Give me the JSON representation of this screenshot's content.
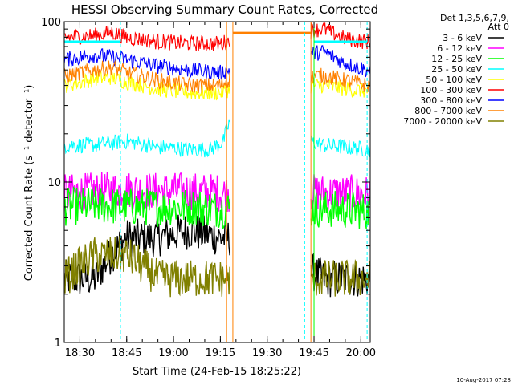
{
  "chart_data": {
    "type": "line",
    "title": "HESSI Observing Summary Count Rates, Corrected",
    "xlabel": "Start Time (24-Feb-15 18:25:22)",
    "ylabel": "Corrected Count Rate (s⁻¹ detector⁻¹)",
    "yscale": "log",
    "ylim": [
      1,
      100
    ],
    "xlim": [
      "18:25",
      "20:03"
    ],
    "x_ticks": [
      "18:30",
      "18:45",
      "19:00",
      "19:15",
      "19:30",
      "19:45",
      "20:00"
    ],
    "y_ticks": [
      "1",
      "10",
      "100"
    ],
    "legend_header": [
      "Det 1,3,5,6,7,9,",
      "Att 0"
    ],
    "legend_position": "right",
    "footer": "10-Aug-2017 07:28",
    "colors": {
      "axis": "#000000",
      "dashed_marker": "#00ffff"
    },
    "series": [
      {
        "name": "3 - 6 keV",
        "color": "#000000",
        "x": [
          "18:25",
          "18:35",
          "18:45",
          "18:55",
          "19:05",
          "19:15",
          "19:18",
          "19:48",
          "19:55",
          "20:02"
        ],
        "y": [
          2.5,
          2.5,
          4.5,
          4.5,
          5,
          4.5,
          4.5,
          2.5,
          2.5,
          2.5
        ]
      },
      {
        "name": "6 - 12 keV",
        "color": "#ff00ff",
        "x": [
          "18:25",
          "18:35",
          "18:45",
          "18:55",
          "19:05",
          "19:15",
          "19:18",
          "19:48",
          "19:55",
          "20:02"
        ],
        "y": [
          8.5,
          8.8,
          9,
          8.8,
          8.8,
          8.6,
          8.5,
          8.6,
          8.5,
          8.4
        ]
      },
      {
        "name": "12 - 25 keV",
        "color": "#00ff00",
        "x": [
          "18:25",
          "18:35",
          "18:45",
          "18:55",
          "19:05",
          "19:15",
          "19:18",
          "19:48",
          "19:55",
          "20:02"
        ],
        "y": [
          7,
          7.2,
          7,
          7,
          7,
          6.8,
          6.8,
          6.8,
          6.7,
          6.6
        ]
      },
      {
        "name": "25 - 50 keV",
        "color": "#00ffff",
        "x": [
          "18:25",
          "18:35",
          "18:45",
          "18:55",
          "19:05",
          "19:12",
          "19:16",
          "19:18",
          "19:48",
          "19:55",
          "20:02"
        ],
        "y": [
          17,
          17,
          18,
          16.5,
          16,
          16,
          18,
          24,
          17,
          16.5,
          16
        ]
      },
      {
        "name": "50 - 100 keV",
        "color": "#ffff00",
        "x": [
          "18:25",
          "18:35",
          "18:40",
          "18:45",
          "18:55",
          "19:05",
          "19:15",
          "19:18",
          "19:48",
          "19:55",
          "20:02"
        ],
        "y": [
          40,
          44,
          45,
          42,
          38,
          36,
          36,
          38,
          40,
          38,
          37
        ]
      },
      {
        "name": "100 - 300 keV",
        "color": "#ff0000",
        "x": [
          "18:25",
          "18:35",
          "18:40",
          "18:45",
          "18:55",
          "19:05",
          "19:15",
          "19:18",
          "19:48",
          "19:55",
          "20:02"
        ],
        "y": [
          80,
          82,
          86,
          80,
          75,
          73,
          73,
          76,
          90,
          78,
          75
        ]
      },
      {
        "name": "300 - 800 keV",
        "color": "#0000ff",
        "x": [
          "18:25",
          "18:35",
          "18:45",
          "18:55",
          "19:05",
          "19:15",
          "19:18",
          "19:48",
          "19:55",
          "20:02"
        ],
        "y": [
          58,
          62,
          58,
          53,
          50,
          48,
          50,
          65,
          55,
          50
        ]
      },
      {
        "name": "800 - 7000 keV",
        "color": "#ff8000",
        "x": [
          "18:25",
          "18:35",
          "18:40",
          "18:45",
          "18:55",
          "19:05",
          "19:15",
          "19:18",
          "19:48",
          "19:55",
          "20:02"
        ],
        "y": [
          46,
          50,
          52,
          48,
          43,
          40,
          40,
          44,
          46,
          43,
          40
        ]
      },
      {
        "name": "7000 - 20000 keV",
        "color": "#808000",
        "x": [
          "18:25",
          "18:35",
          "18:45",
          "18:55",
          "19:05",
          "19:15",
          "19:18",
          "19:48",
          "19:55",
          "20:02"
        ],
        "y": [
          2.5,
          3.5,
          3.5,
          2.5,
          2.5,
          2.5,
          2.5,
          2.5,
          2.5,
          2.5
        ]
      }
    ],
    "overlays": [
      {
        "kind": "cyan_level",
        "color": "#00ffff",
        "x": [
          "18:25",
          "18:43"
        ],
        "y": 75
      },
      {
        "kind": "cyan_level",
        "color": "#00ffff",
        "x": [
          "19:45",
          "20:02"
        ],
        "y": 75
      },
      {
        "kind": "orange_plateau",
        "color": "#ff8000",
        "x": [
          "19:19",
          "19:44"
        ],
        "y": 85
      }
    ],
    "event_markers": [
      {
        "x": "18:43",
        "style": "dashed",
        "color": "#00ffff"
      },
      {
        "x": "19:17",
        "style": "solid",
        "color": "#ff8000"
      },
      {
        "x": "19:19",
        "style": "solid",
        "color": "#ff8000"
      },
      {
        "x": "19:42",
        "style": "dashed",
        "color": "#00ffff"
      },
      {
        "x": "19:44",
        "style": "solid",
        "color": "#ff8000"
      },
      {
        "x": "19:45",
        "style": "solid",
        "color": "#00ff00"
      },
      {
        "x": "20:02",
        "style": "dashed",
        "color": "#00ffff"
      }
    ],
    "gaps": [
      [
        "19:18",
        "19:44"
      ]
    ],
    "grid": false
  }
}
